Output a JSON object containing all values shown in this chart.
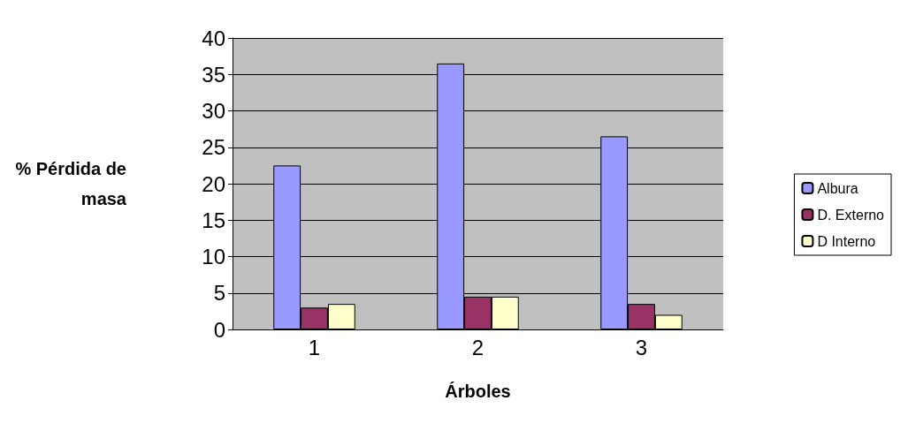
{
  "chart_data": {
    "type": "bar",
    "xlabel": "Árboles",
    "ylabel": "% Pérdida de\nmasa",
    "categories": [
      "1",
      "2",
      "3"
    ],
    "series": [
      {
        "name": "Albura",
        "color": "#9999ff",
        "values": [
          22.5,
          36.5,
          26.5
        ]
      },
      {
        "name": "D. Externo",
        "color": "#993366",
        "values": [
          3,
          4.5,
          3.5
        ]
      },
      {
        "name": "D Interno",
        "color": "#ffffcc",
        "values": [
          3.5,
          4.5,
          2
        ]
      }
    ],
    "ylim": [
      0,
      40
    ],
    "yticks": [
      0,
      5,
      10,
      15,
      20,
      25,
      30,
      35,
      40
    ],
    "grid": "y",
    "legend": "right"
  }
}
